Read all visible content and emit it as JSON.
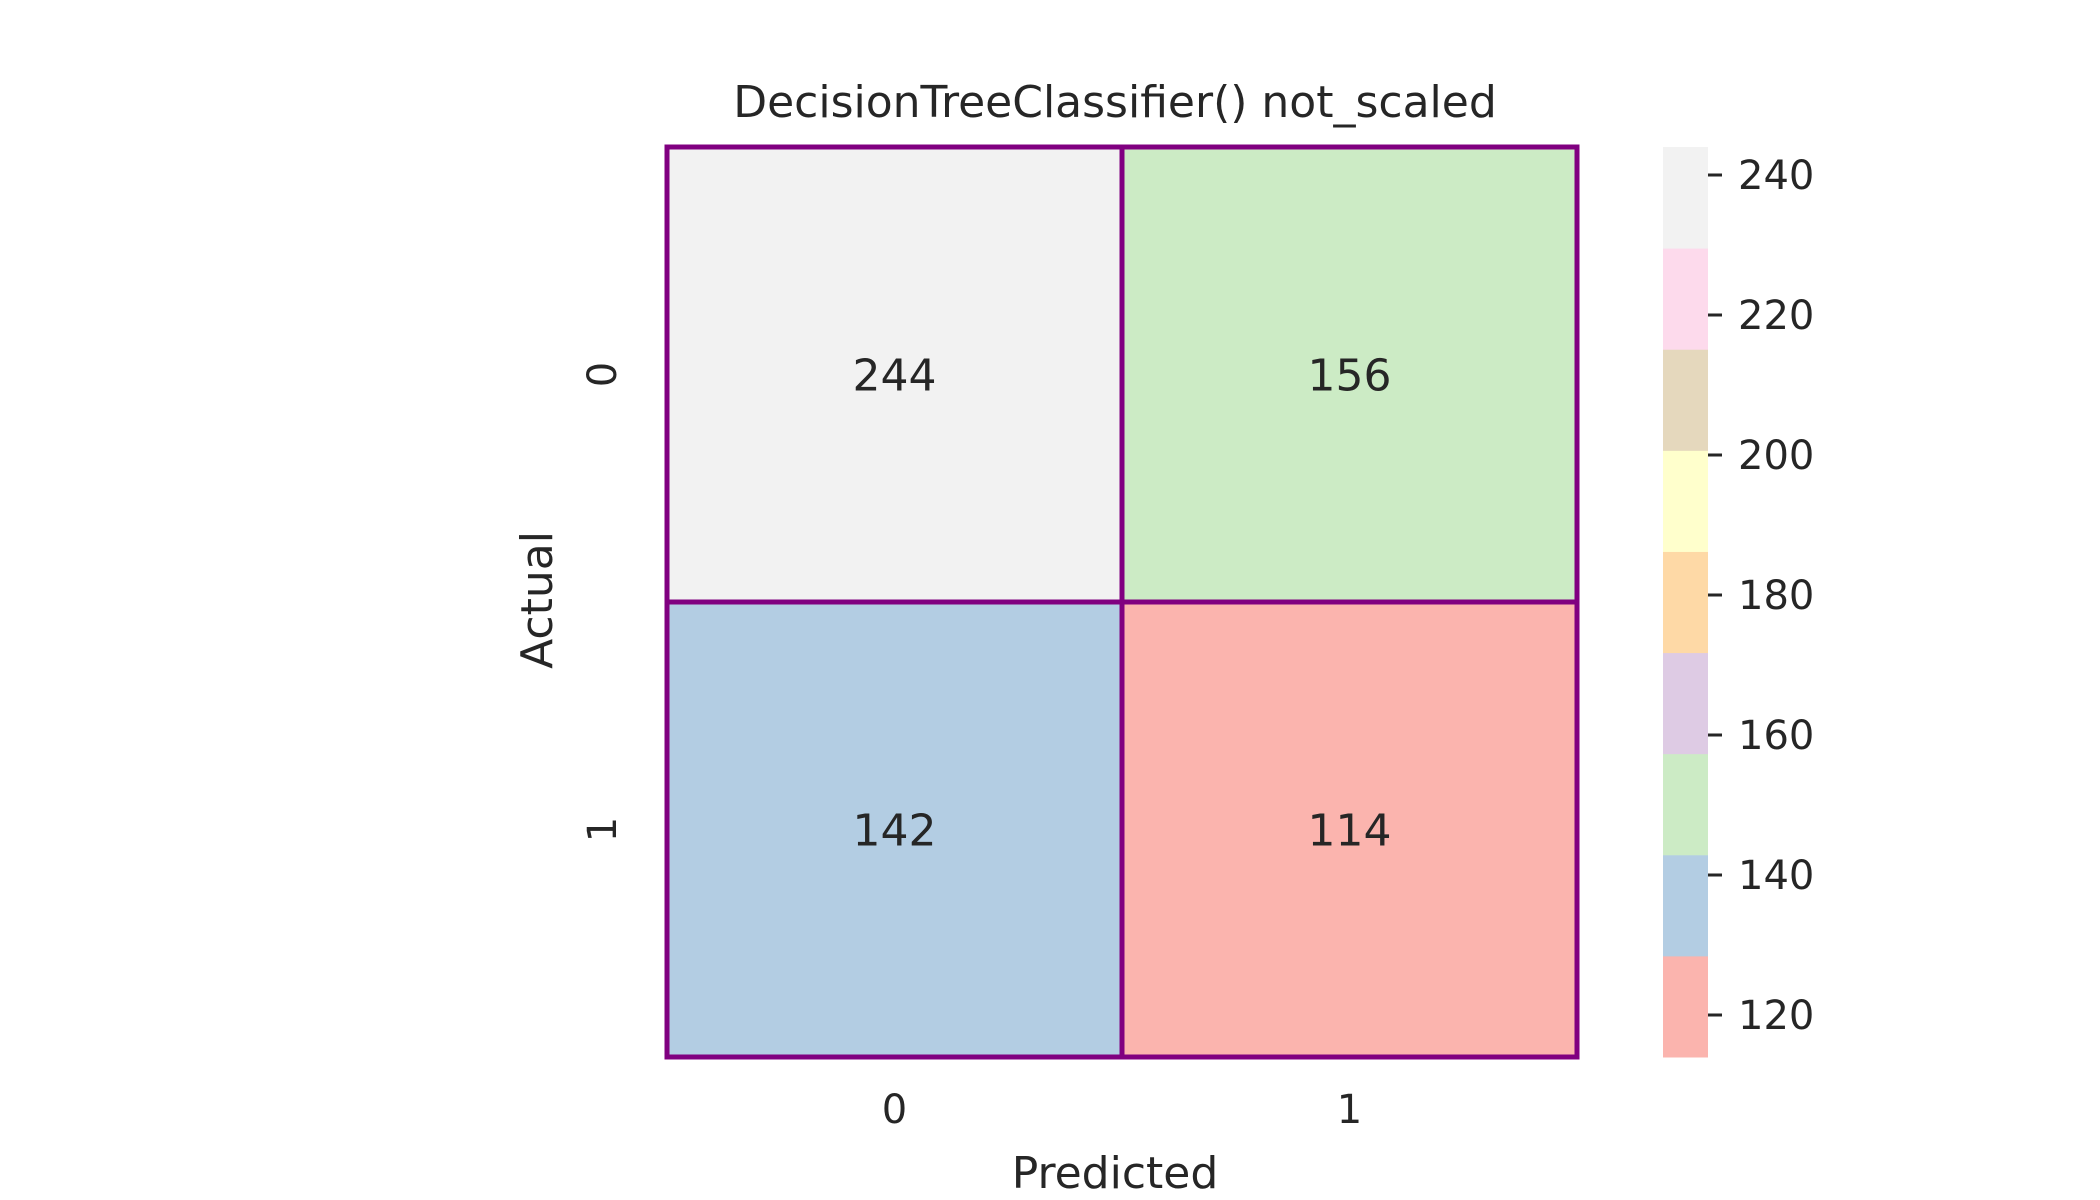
{
  "chart_data": {
    "type": "heatmap",
    "title": "DecisionTreeClassifier() not_scaled",
    "xlabel": "Predicted",
    "ylabel": "Actual",
    "x_categories": [
      "0",
      "1"
    ],
    "y_categories": [
      "0",
      "1"
    ],
    "values": [
      [
        244,
        156
      ],
      [
        142,
        114
      ]
    ],
    "cell_border_color": "#800080",
    "colorbar": {
      "range": [
        114,
        244
      ],
      "ticks": [
        120,
        140,
        160,
        180,
        200,
        220,
        240
      ],
      "tick_labels": [
        "120",
        "140",
        "160",
        "180",
        "200",
        "220",
        "240"
      ],
      "colors_low_to_high": [
        "#fbb4ae",
        "#b3cde3",
        "#ccebc5",
        "#decbe4",
        "#fed9a6",
        "#ffffcc",
        "#e5d8bd",
        "#fddaec",
        "#f2f2f2"
      ]
    }
  }
}
